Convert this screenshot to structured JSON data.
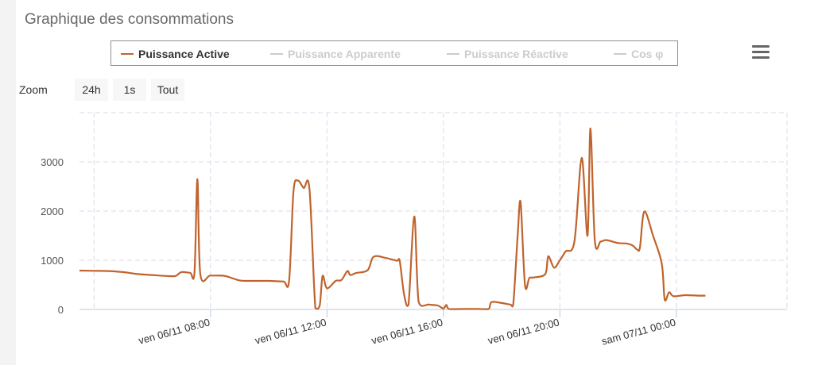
{
  "panel": {
    "title": "Graphique des consommations"
  },
  "legend": {
    "items": [
      {
        "label": "Puissance Active",
        "color": "#c0632c",
        "active": true
      },
      {
        "label": "Puissance Apparente",
        "color": "#cccccc",
        "active": false
      },
      {
        "label": "Puissance Réactive",
        "color": "#cccccc",
        "active": false
      },
      {
        "label": "Cos φ",
        "color": "#cccccc",
        "active": false
      }
    ]
  },
  "menu": {
    "icon": "hamburger-menu-icon"
  },
  "zoom": {
    "label": "Zoom",
    "buttons": [
      "24h",
      "1s",
      "Tout"
    ]
  },
  "chart_data": {
    "type": "line",
    "title": "",
    "xlabel": "",
    "ylabel": "",
    "ylim": [
      0,
      4000
    ],
    "yticks": [
      "0",
      "1000",
      "2000",
      "3000"
    ],
    "x_unit": "hours since ven 06/11 00:00",
    "xlim": [
      3.5,
      27.8
    ],
    "xticks": [
      {
        "x": 8,
        "label": "ven 06/11 08:00"
      },
      {
        "x": 12,
        "label": "ven 06/11 12:00"
      },
      {
        "x": 16,
        "label": "ven 06/11 16:00"
      },
      {
        "x": 20,
        "label": "ven 06/11 20:00"
      },
      {
        "x": 24,
        "label": "sam 07/11 00:00"
      }
    ],
    "grid": true,
    "series": [
      {
        "name": "Puissance Active",
        "color": "#c0632c",
        "points": [
          [
            3.5,
            790
          ],
          [
            4.0,
            785
          ],
          [
            4.5,
            780
          ],
          [
            5.0,
            760
          ],
          [
            5.5,
            720
          ],
          [
            6.0,
            700
          ],
          [
            6.5,
            680
          ],
          [
            6.8,
            680
          ],
          [
            7.0,
            760
          ],
          [
            7.3,
            745
          ],
          [
            7.45,
            760
          ],
          [
            7.55,
            2650
          ],
          [
            7.65,
            720
          ],
          [
            8.0,
            690
          ],
          [
            8.5,
            680
          ],
          [
            9.0,
            590
          ],
          [
            9.5,
            580
          ],
          [
            10.0,
            580
          ],
          [
            10.5,
            570
          ],
          [
            10.7,
            590
          ],
          [
            10.85,
            2400
          ],
          [
            11.0,
            2620
          ],
          [
            11.2,
            2470
          ],
          [
            11.4,
            2450
          ],
          [
            11.6,
            30
          ],
          [
            11.75,
            80
          ],
          [
            11.85,
            680
          ],
          [
            12.0,
            430
          ],
          [
            12.3,
            580
          ],
          [
            12.5,
            600
          ],
          [
            12.7,
            780
          ],
          [
            12.8,
            700
          ],
          [
            13.0,
            740
          ],
          [
            13.4,
            800
          ],
          [
            13.6,
            1070
          ],
          [
            14.0,
            1050
          ],
          [
            14.4,
            990
          ],
          [
            14.5,
            980
          ],
          [
            14.65,
            300
          ],
          [
            14.8,
            100
          ],
          [
            15.0,
            1890
          ],
          [
            15.15,
            150
          ],
          [
            15.5,
            100
          ],
          [
            15.8,
            80
          ],
          [
            16.0,
            20
          ],
          [
            16.1,
            90
          ],
          [
            16.2,
            10
          ],
          [
            16.7,
            10
          ],
          [
            17.2,
            10
          ],
          [
            17.55,
            10
          ],
          [
            17.65,
            150
          ],
          [
            18.0,
            130
          ],
          [
            18.3,
            100
          ],
          [
            18.4,
            110
          ],
          [
            18.55,
            1500
          ],
          [
            18.65,
            2180
          ],
          [
            18.8,
            500
          ],
          [
            18.95,
            640
          ],
          [
            19.1,
            650
          ],
          [
            19.5,
            720
          ],
          [
            19.6,
            1080
          ],
          [
            19.8,
            850
          ],
          [
            20.0,
            1000
          ],
          [
            20.2,
            1180
          ],
          [
            20.5,
            1380
          ],
          [
            20.75,
            3080
          ],
          [
            20.95,
            1500
          ],
          [
            21.05,
            3680
          ],
          [
            21.2,
            1400
          ],
          [
            21.4,
            1380
          ],
          [
            21.6,
            1410
          ],
          [
            22.0,
            1350
          ],
          [
            22.3,
            1340
          ],
          [
            22.5,
            1300
          ],
          [
            22.65,
            1220
          ],
          [
            22.75,
            1260
          ],
          [
            22.9,
            1990
          ],
          [
            23.2,
            1500
          ],
          [
            23.5,
            930
          ],
          [
            23.6,
            200
          ],
          [
            23.75,
            350
          ],
          [
            23.9,
            270
          ],
          [
            24.3,
            290
          ],
          [
            24.8,
            280
          ],
          [
            25.0,
            280
          ]
        ]
      }
    ]
  }
}
